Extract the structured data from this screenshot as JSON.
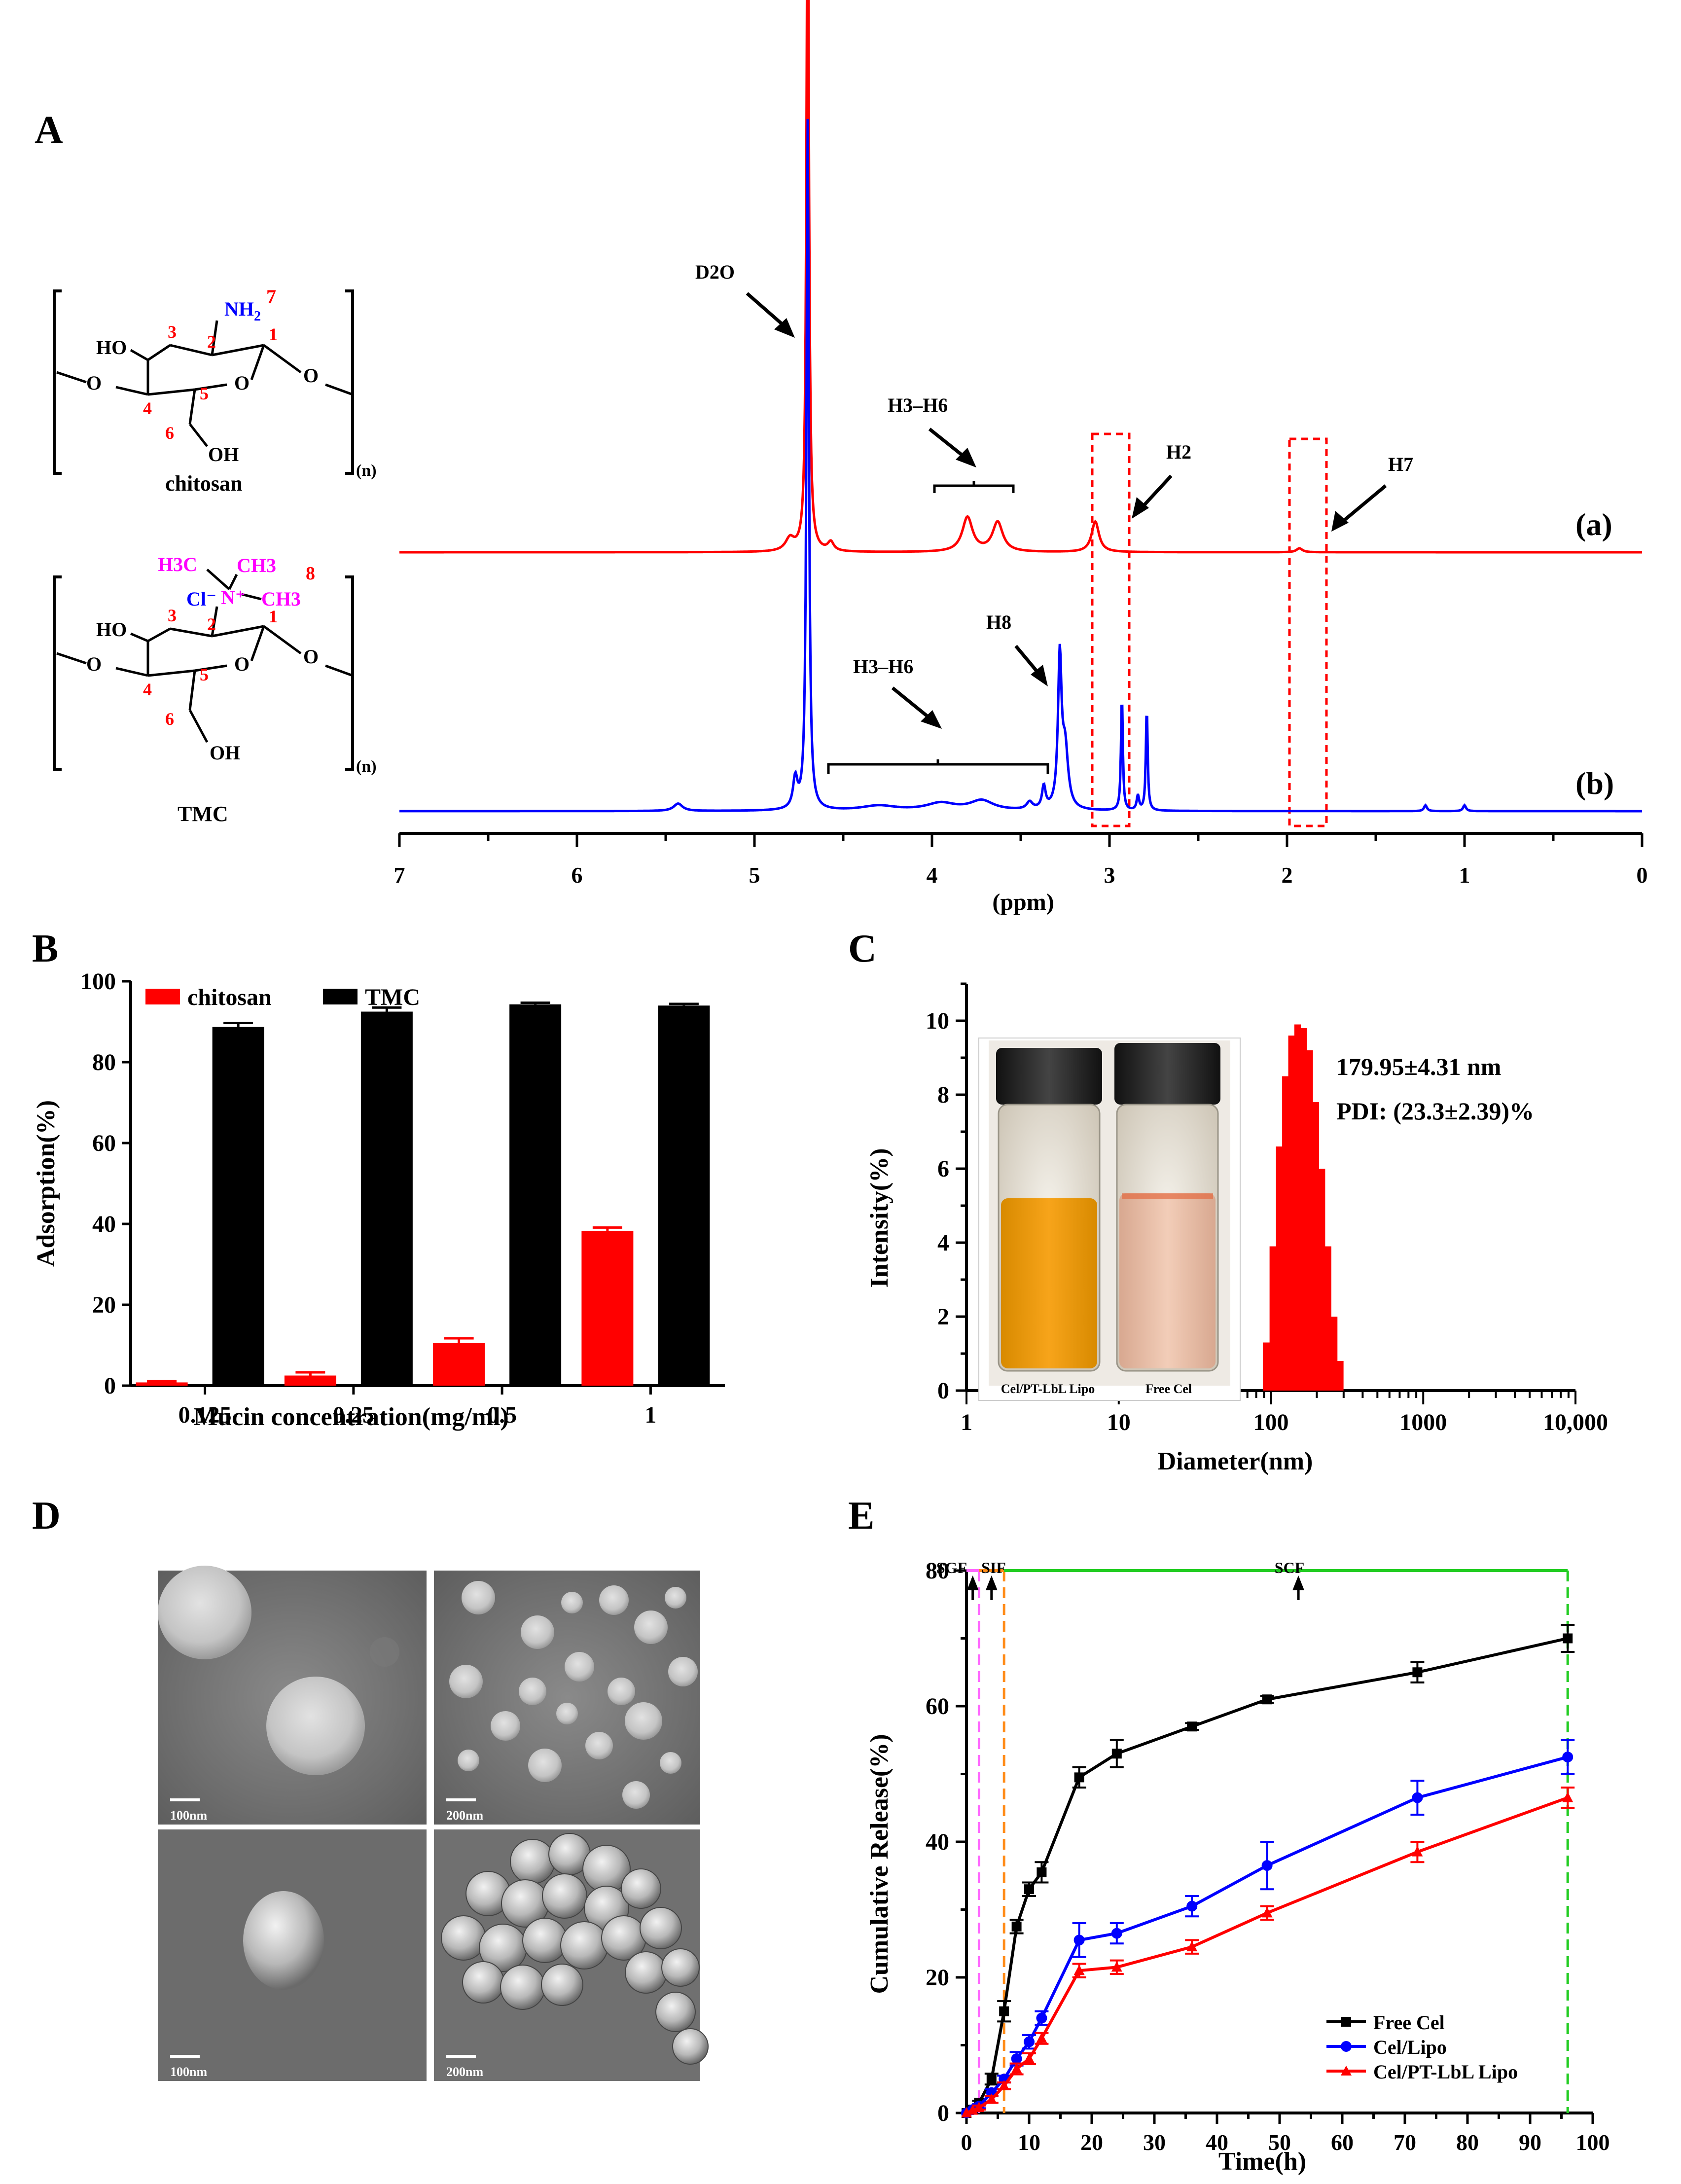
{
  "panels": {
    "A": {
      "letter": "A",
      "ppm_axis_label": "(ppm)",
      "x_ticks": [
        "7",
        "6",
        "5",
        "4",
        "3",
        "2",
        "1",
        "0"
      ],
      "trace_labels": [
        "(a)",
        "(b)"
      ],
      "peak_labels": {
        "d2o": "D2O",
        "h3h6_a": "H3–H6",
        "h2": "H2",
        "h7": "H7",
        "h8": "H8",
        "h3h6_b": "H3–H6"
      },
      "chitosan": {
        "name": "chitosan",
        "nh2": "NH",
        "nh2_sub": "2",
        "nh2_pos": "7",
        "ho": "HO",
        "oh": "OH",
        "o_left": "O",
        "o_ring": "O",
        "o_right": "O",
        "numbers": [
          "1",
          "2",
          "3",
          "4",
          "5",
          "6"
        ],
        "n": "(n)"
      },
      "tmc": {
        "name": "TMC",
        "h3c": "H3C",
        "ch3_top": "CH3",
        "ch3_right": "CH3",
        "cl": "Cl⁻",
        "n_plus": "N⁺",
        "pos8": "8",
        "ho": "HO",
        "oh": "OH",
        "o_left": "O",
        "o_ring": "O",
        "o_right": "O",
        "numbers": [
          "1",
          "2",
          "3",
          "4",
          "5",
          "6"
        ],
        "n": "(n)"
      },
      "colors": {
        "chitosan": "#ff0000",
        "tmc": "#0000ff",
        "highlight": "#ff0000",
        "amine": "#0000ff",
        "methyl": "#ff00ff"
      }
    },
    "B": {
      "letter": "B"
    },
    "C": {
      "letter": "C",
      "annotation_size": "179.95±4.31 nm",
      "annotation_pdi": "PDI: (23.3±2.39)%",
      "photo_labels": [
        "Cel/PT-LbL Lipo",
        "Free Cel"
      ]
    },
    "D": {
      "letter": "D",
      "scale_bars": [
        "100nm",
        "200nm",
        "100nm",
        "200nm"
      ]
    },
    "E": {
      "letter": "E",
      "phases": [
        "SGF",
        "SIF",
        "SCF"
      ]
    }
  },
  "chart_data": [
    {
      "panel": "A",
      "type": "line",
      "xlabel": "(ppm)",
      "xlim": [
        7,
        0
      ],
      "series": [
        {
          "name": "(a)",
          "peaks_ppm": [
            4.7,
            3.8,
            3.63,
            3.08,
            1.93
          ]
        },
        {
          "name": "(b)",
          "peaks_ppm": [
            4.7,
            3.28,
            2.93,
            2.79,
            5.43,
            1.22,
            1.0
          ]
        }
      ]
    },
    {
      "panel": "B",
      "type": "bar",
      "categories": [
        "0.125",
        "0.25",
        "0.5",
        "1"
      ],
      "series": [
        {
          "name": "chitosan",
          "values": [
            0.8,
            2.5,
            10.5,
            38.3
          ],
          "errors": [
            0.3,
            0.8,
            1.2,
            0.8
          ]
        },
        {
          "name": "TMC",
          "values": [
            88.7,
            92.5,
            94.3,
            94.0
          ],
          "errors": [
            1.0,
            1.0,
            0.4,
            0.4
          ]
        }
      ],
      "xlabel": "Mucin concentration(mg/ml)",
      "ylabel": "Adsorption(%)",
      "ylim": [
        0,
        100
      ],
      "yticks": [
        0,
        20,
        40,
        60,
        80,
        100
      ]
    },
    {
      "panel": "C",
      "type": "bar",
      "x": [
        93,
        103,
        113,
        124,
        136,
        149,
        163,
        179,
        196,
        215,
        236,
        259,
        284
      ],
      "values": [
        1.3,
        3.9,
        6.6,
        8.5,
        9.6,
        9.9,
        9.8,
        9.2,
        7.8,
        6.0,
        3.9,
        2.0,
        0.8
      ],
      "xlabel": "Diameter(nm)",
      "ylabel": "Intensity(%)",
      "xscale": "log",
      "xlim": [
        1,
        10000
      ],
      "xticks": [
        "1",
        "10",
        "100",
        "1000",
        "10,000"
      ],
      "ylim": [
        0,
        11
      ],
      "yticks": [
        0,
        2,
        4,
        6,
        8,
        10
      ]
    },
    {
      "panel": "E",
      "type": "line",
      "x": [
        0,
        1,
        2,
        4,
        6,
        8,
        10,
        12,
        18,
        24,
        36,
        48,
        72,
        96
      ],
      "series": [
        {
          "name": "Free Cel",
          "values": [
            0,
            0.5,
            1.5,
            5,
            15,
            27.5,
            33,
            35.5,
            49.5,
            53,
            57,
            61,
            65,
            70
          ],
          "errors": [
            0,
            0,
            0.3,
            0.8,
            1.5,
            1,
            1,
            1.5,
            1.5,
            2,
            0.5,
            0.5,
            1.5,
            2
          ]
        },
        {
          "name": "Cel/Lipo",
          "values": [
            0,
            0.5,
            1,
            3,
            5,
            8,
            10.5,
            14,
            25.5,
            26.5,
            30.5,
            36.5,
            46.5,
            52.5
          ],
          "errors": [
            0,
            0,
            0.3,
            0.5,
            0.5,
            1,
            1,
            1,
            2.5,
            1.5,
            1.5,
            3.5,
            2.5,
            2.5
          ]
        },
        {
          "name": "Cel/PT-LbL Lipo",
          "values": [
            0,
            0.4,
            0.8,
            2,
            4,
            6.5,
            8,
            11,
            21,
            21.5,
            24.5,
            29.5,
            38.5,
            46.5
          ],
          "errors": [
            0,
            0,
            0.3,
            0.5,
            0.5,
            0.8,
            0.8,
            0.8,
            1,
            1,
            1,
            1,
            1.5,
            1.5
          ]
        }
      ],
      "xlabel": "Time(h)",
      "ylabel": "Cumulative Release(%)",
      "xlim": [
        0,
        100
      ],
      "xticks": [
        0,
        10,
        20,
        30,
        40,
        50,
        60,
        70,
        80,
        90,
        100
      ],
      "ylim": [
        0,
        80
      ],
      "yticks": [
        0,
        20,
        40,
        60,
        80
      ],
      "phase_boundaries_h": [
        2,
        6,
        96
      ]
    }
  ]
}
